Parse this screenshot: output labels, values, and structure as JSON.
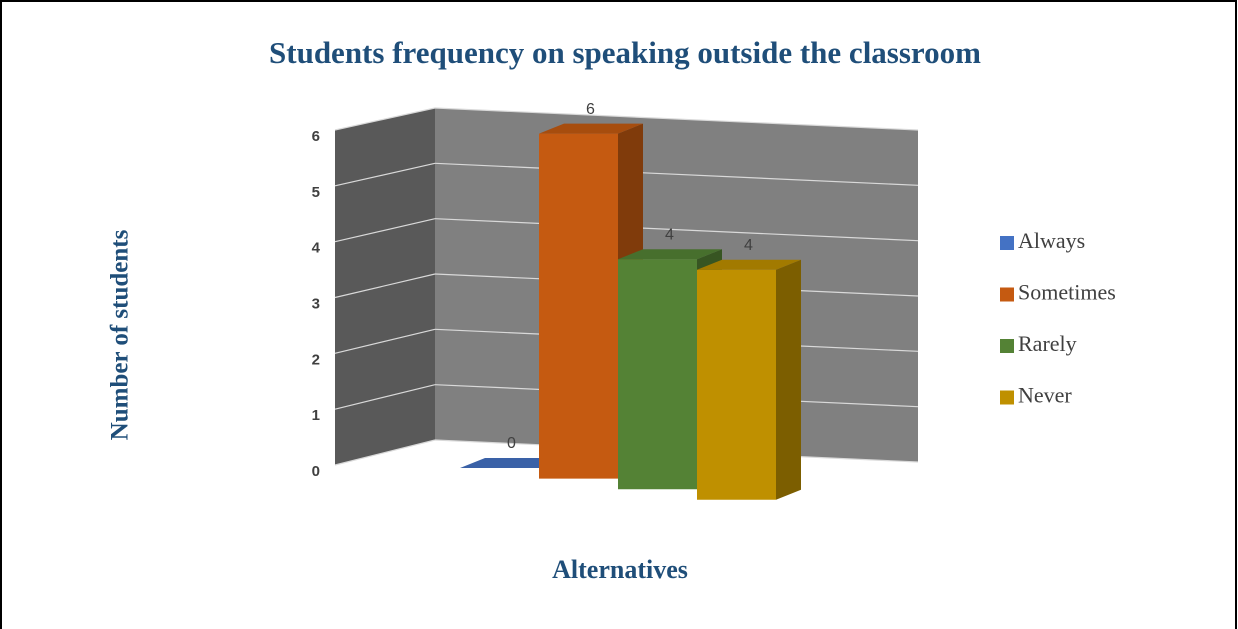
{
  "chart_data": {
    "type": "bar3d",
    "title": "Students frequency on speaking outside the classroom",
    "y_label": "Number of students",
    "x_label": "Alternatives",
    "series": [
      {
        "name": "Always",
        "color": "#4472c4",
        "values": [
          0
        ]
      },
      {
        "name": "Sometimes",
        "color": "#c55a11",
        "values": [
          6
        ]
      },
      {
        "name": "Rarely",
        "color": "#548235",
        "values": [
          4
        ]
      },
      {
        "name": "Never",
        "color": "#bf9000",
        "values": [
          4
        ]
      }
    ],
    "ylim": [
      0,
      6
    ],
    "yticks": [
      0,
      1,
      2,
      3,
      4,
      5,
      6
    ],
    "grid": true,
    "legend": "right"
  }
}
